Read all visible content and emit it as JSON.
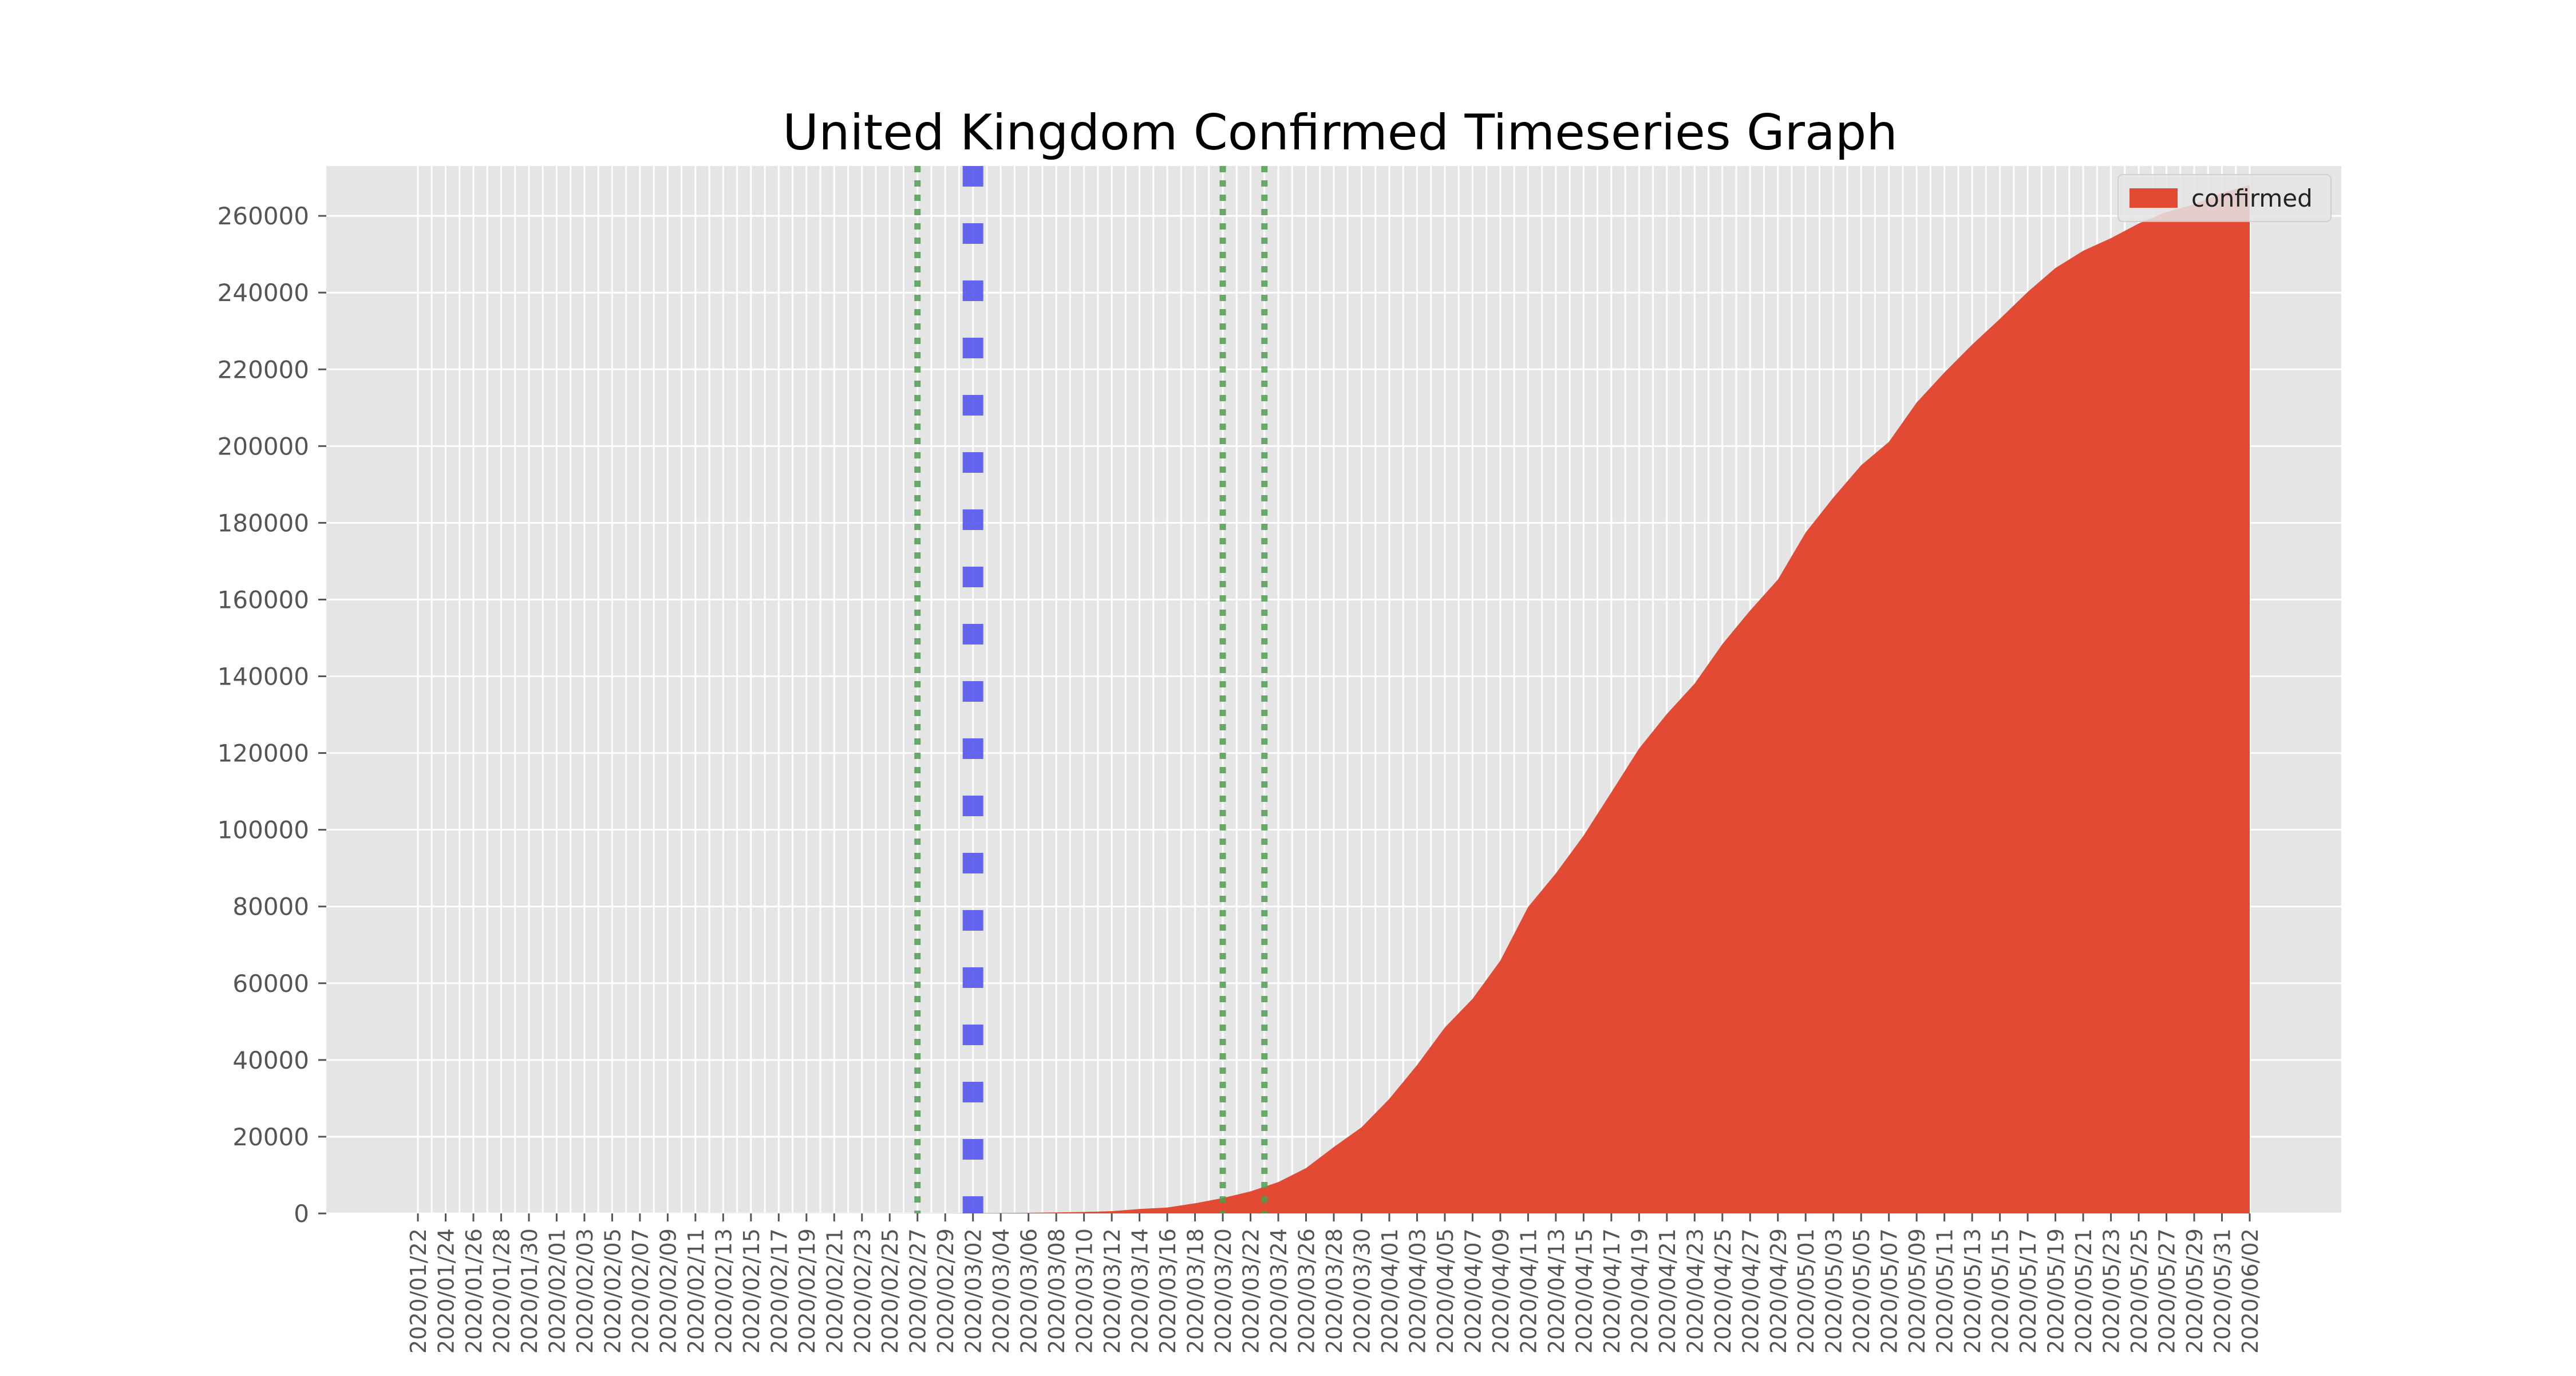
{
  "chart_data": {
    "type": "area",
    "title": "United Kingdom Confirmed Timeseries Graph",
    "xlabel": "",
    "ylabel": "",
    "x_start": "2020/01/22",
    "x_end": "2020/06/02",
    "tick_labels": [
      "2020/01/22",
      "2020/01/24",
      "2020/01/26",
      "2020/01/28",
      "2020/01/30",
      "2020/02/01",
      "2020/02/03",
      "2020/02/05",
      "2020/02/07",
      "2020/02/09",
      "2020/02/11",
      "2020/02/13",
      "2020/02/15",
      "2020/02/17",
      "2020/02/19",
      "2020/02/21",
      "2020/02/23",
      "2020/02/25",
      "2020/02/27",
      "2020/02/29",
      "2020/03/02",
      "2020/03/04",
      "2020/03/06",
      "2020/03/08",
      "2020/03/10",
      "2020/03/12",
      "2020/03/14",
      "2020/03/16",
      "2020/03/18",
      "2020/03/20",
      "2020/03/22",
      "2020/03/24",
      "2020/03/26",
      "2020/03/28",
      "2020/03/30",
      "2020/04/01",
      "2020/04/03",
      "2020/04/05",
      "2020/04/07",
      "2020/04/09",
      "2020/04/11",
      "2020/04/13",
      "2020/04/15",
      "2020/04/17",
      "2020/04/19",
      "2020/04/21",
      "2020/04/23",
      "2020/04/25",
      "2020/04/27",
      "2020/04/29",
      "2020/05/01",
      "2020/05/03",
      "2020/05/05",
      "2020/05/07",
      "2020/05/09",
      "2020/05/11",
      "2020/05/13",
      "2020/05/15",
      "2020/05/17",
      "2020/05/19",
      "2020/05/21",
      "2020/05/23",
      "2020/05/25",
      "2020/05/27",
      "2020/05/29",
      "2020/05/31",
      "2020/06/02"
    ],
    "ylim": [
      0,
      273000
    ],
    "yticks": [
      0,
      20000,
      40000,
      60000,
      80000,
      100000,
      120000,
      140000,
      160000,
      180000,
      200000,
      220000,
      240000,
      260000
    ],
    "grid": true,
    "legend_position": "upper-right",
    "series": [
      {
        "name": "confirmed",
        "color": "#E24A33",
        "points": [
          [
            "2020/01/22",
            0
          ],
          [
            "2020/01/31",
            2
          ],
          [
            "2020/02/15",
            9
          ],
          [
            "2020/02/29",
            23
          ],
          [
            "2020/03/06",
            164
          ],
          [
            "2020/03/08",
            273
          ],
          [
            "2020/03/10",
            384
          ],
          [
            "2020/03/12",
            590
          ],
          [
            "2020/03/14",
            1144
          ],
          [
            "2020/03/16",
            1551
          ],
          [
            "2020/03/18",
            2642
          ],
          [
            "2020/03/20",
            4014
          ],
          [
            "2020/03/22",
            5745
          ],
          [
            "2020/03/24",
            8164
          ],
          [
            "2020/03/26",
            11812
          ],
          [
            "2020/03/28",
            17312
          ],
          [
            "2020/03/30",
            22453
          ],
          [
            "2020/04/01",
            29865
          ],
          [
            "2020/04/03",
            38689
          ],
          [
            "2020/04/05",
            48436
          ],
          [
            "2020/04/07",
            55949
          ],
          [
            "2020/04/09",
            65872
          ],
          [
            "2020/04/11",
            79874
          ],
          [
            "2020/04/13",
            88621
          ],
          [
            "2020/04/15",
            98476
          ],
          [
            "2020/04/17",
            109769
          ],
          [
            "2020/04/19",
            121172
          ],
          [
            "2020/04/21",
            130172
          ],
          [
            "2020/04/23",
            138078
          ],
          [
            "2020/04/25",
            148377
          ],
          [
            "2020/04/27",
            157149
          ],
          [
            "2020/04/29",
            165221
          ],
          [
            "2020/05/01",
            177454
          ],
          [
            "2020/05/03",
            186599
          ],
          [
            "2020/05/05",
            194990
          ],
          [
            "2020/05/07",
            201101
          ],
          [
            "2020/05/09",
            211364
          ],
          [
            "2020/05/11",
            219183
          ],
          [
            "2020/05/13",
            226463
          ],
          [
            "2020/05/15",
            233151
          ],
          [
            "2020/05/17",
            240161
          ],
          [
            "2020/05/19",
            246406
          ],
          [
            "2020/05/21",
            250908
          ],
          [
            "2020/05/23",
            254195
          ],
          [
            "2020/05/25",
            258000
          ],
          [
            "2020/05/27",
            261000
          ],
          [
            "2020/05/29",
            263000
          ],
          [
            "2020/05/31",
            266000
          ],
          [
            "2020/06/02",
            268000
          ]
        ]
      }
    ],
    "vertical_markers": [
      {
        "date": "2020/02/27",
        "color": "#4f9e4f",
        "style": "dotted"
      },
      {
        "date": "2020/03/02",
        "color": "#5555ee",
        "style": "dashed"
      },
      {
        "date": "2020/03/20",
        "color": "#4f9e4f",
        "style": "dotted"
      },
      {
        "date": "2020/03/23",
        "color": "#4f9e4f",
        "style": "dotted"
      }
    ]
  }
}
